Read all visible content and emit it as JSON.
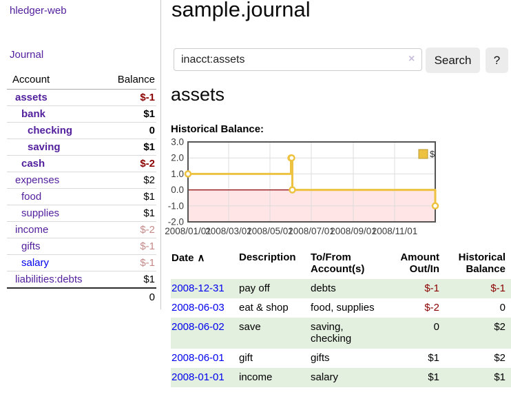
{
  "colors": {
    "purple": "#53209d",
    "blue": "#0000ee",
    "darkred": "#8b0000",
    "mutedred": "#c68989",
    "rowgreen": "#e3efdf",
    "pinkfill": "#ffe5e5",
    "zeroline": "#8b0000",
    "gridline": "#dcdcdc",
    "chartborder": "#545454"
  },
  "sidebar": {
    "app_title": "hledger-web",
    "journal_link": "Journal",
    "accounts": {
      "col_account": "Account",
      "col_balance": "Balance",
      "rows": [
        {
          "account": "assets",
          "depth": 0,
          "balance": "$-1",
          "bold": true,
          "neg": true,
          "muted": false,
          "link": "purple"
        },
        {
          "account": "bank",
          "depth": 1,
          "balance": "$1",
          "bold": true,
          "neg": false,
          "muted": false,
          "link": "purple"
        },
        {
          "account": "checking",
          "depth": 2,
          "balance": "0",
          "bold": true,
          "neg": false,
          "muted": false,
          "link": "purple"
        },
        {
          "account": "saving",
          "depth": 2,
          "balance": "$1",
          "bold": true,
          "neg": false,
          "muted": false,
          "link": "purple"
        },
        {
          "account": "cash",
          "depth": 1,
          "balance": "$-2",
          "bold": true,
          "neg": true,
          "muted": false,
          "link": "purple"
        },
        {
          "account": "expenses",
          "depth": 0,
          "balance": "$2",
          "bold": false,
          "neg": false,
          "muted": false,
          "link": "purple"
        },
        {
          "account": "food",
          "depth": 1,
          "balance": "$1",
          "bold": false,
          "neg": false,
          "muted": false,
          "link": "purple"
        },
        {
          "account": "supplies",
          "depth": 1,
          "balance": "$1",
          "bold": false,
          "neg": false,
          "muted": false,
          "link": "purple"
        },
        {
          "account": "income",
          "depth": 0,
          "balance": "$-2",
          "bold": false,
          "neg": true,
          "muted": true,
          "link": "purple"
        },
        {
          "account": "gifts",
          "depth": 1,
          "balance": "$-1",
          "bold": false,
          "neg": true,
          "muted": true,
          "link": "purple"
        },
        {
          "account": "salary",
          "depth": 1,
          "balance": "$-1",
          "bold": false,
          "neg": true,
          "muted": true,
          "link": "blue"
        },
        {
          "account": "liabilities:debts",
          "depth": 0,
          "balance": "$1",
          "bold": false,
          "neg": false,
          "muted": false,
          "link": "purple"
        }
      ],
      "total": "0"
    }
  },
  "main": {
    "title": "sample.journal",
    "account_heading": "assets",
    "chart_heading": "Historical Balance:"
  },
  "search": {
    "value": "inacct:assets",
    "clear_icon": "×",
    "search_label": "Search",
    "help_label": "?"
  },
  "chart_data": {
    "type": "line",
    "step": true,
    "title": "Historical Balance:",
    "xlabel": "",
    "ylabel": "",
    "legend": [
      "$"
    ],
    "legend_position": "top-right",
    "grid": true,
    "x_range": [
      "2008-01-01",
      "2008-12-31"
    ],
    "ylim": [
      -2,
      3
    ],
    "y_ticks": [
      -2,
      -1,
      0,
      1,
      2,
      3
    ],
    "x_ticks": [
      "2008/01/01",
      "2008/03/01",
      "2008/05/01",
      "2008/07/01",
      "2008/09/01",
      "2008/11/01"
    ],
    "series": [
      {
        "name": "$",
        "color": "#edc240",
        "points": [
          [
            "2008-01-01",
            1
          ],
          [
            "2008-06-01",
            2
          ],
          [
            "2008-06-02",
            2
          ],
          [
            "2008-06-03",
            0
          ],
          [
            "2008-12-31",
            -1
          ]
        ]
      }
    ]
  },
  "register": {
    "headers": {
      "date": "Date",
      "sort_icon": "∧",
      "description": "Description",
      "accounts": "To/From Account(s)",
      "amount": "Amount Out/In",
      "balance": "Historical Balance"
    },
    "rows": [
      {
        "date": "2008-12-31",
        "description": "pay off",
        "accounts": "debts",
        "amount": "$-1",
        "balance": "$-1"
      },
      {
        "date": "2008-06-03",
        "description": "eat & shop",
        "accounts": "food, supplies",
        "amount": "$-2",
        "balance": "0"
      },
      {
        "date": "2008-06-02",
        "description": "save",
        "accounts": "saving, checking",
        "amount": "0",
        "balance": "$2"
      },
      {
        "date": "2008-06-01",
        "description": "gift",
        "accounts": "gifts",
        "amount": "$1",
        "balance": "$2"
      },
      {
        "date": "2008-01-01",
        "description": "income",
        "accounts": "salary",
        "amount": "$1",
        "balance": "$1"
      }
    ]
  }
}
